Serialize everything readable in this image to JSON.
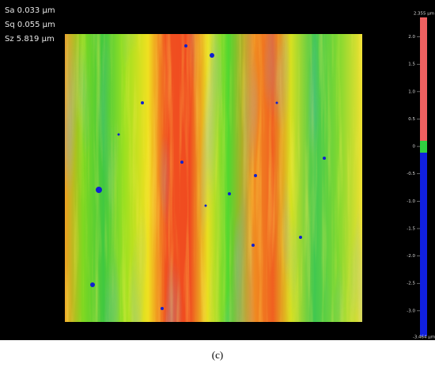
{
  "stats": [
    "Sa 0.033 µm",
    "Sq 0.055 µm",
    "Sz 5.819 µm"
  ],
  "colorbar": {
    "max_label": "2.355 µm",
    "min_label": "-3.464 µm",
    "max": 2.355,
    "min": -3.464,
    "ticks": [
      {
        "value": 2,
        "label": "2.0"
      },
      {
        "value": 1.5,
        "label": "1.5"
      },
      {
        "value": 1,
        "label": "1.0"
      },
      {
        "value": 0.5,
        "label": "0.5"
      },
      0,
      {
        "value": -0.5,
        "label": "-0.5"
      },
      {
        "value": -1,
        "label": "-1.0"
      },
      {
        "value": -1.5,
        "label": "-1.5"
      },
      {
        "value": -2,
        "label": "-2.0"
      },
      {
        "value": -2.5,
        "label": "-2.5"
      },
      {
        "value": -3,
        "label": "-3.0"
      }
    ]
  },
  "caption": "(c)"
}
